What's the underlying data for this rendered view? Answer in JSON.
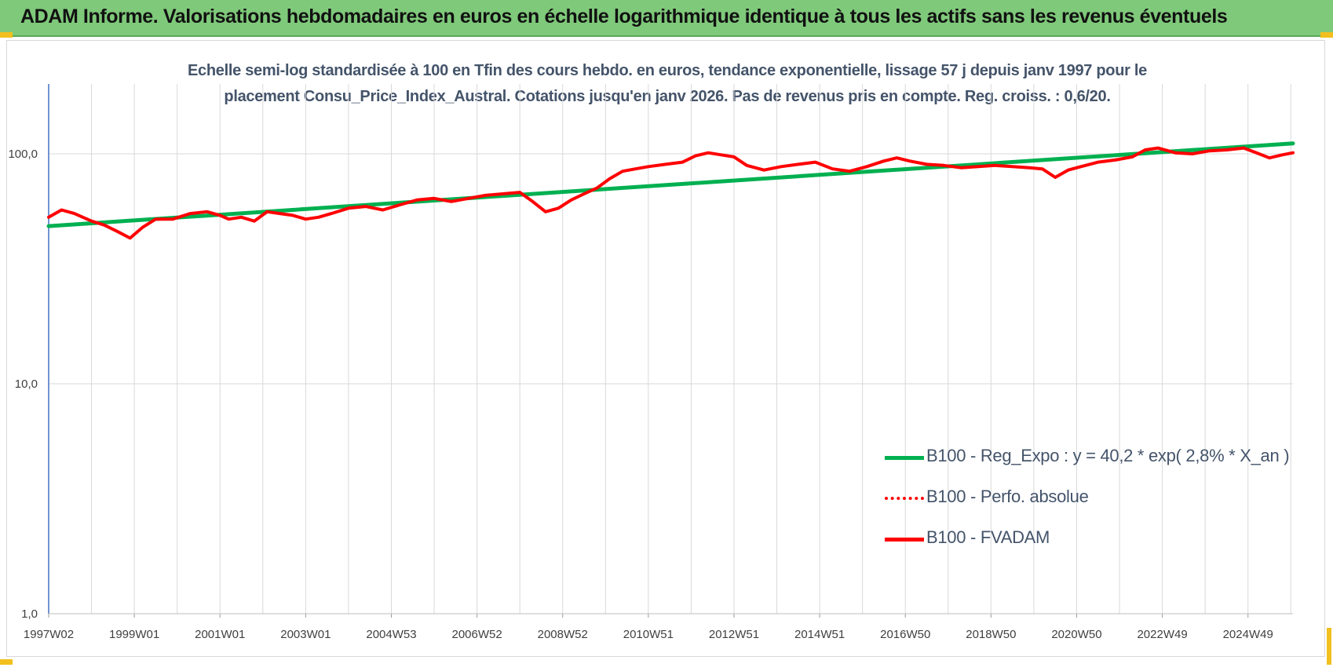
{
  "header": {
    "title": "ADAM Informe. Valorisations hebdomadaires en euros en échelle logarithmique identique à tous les actifs sans les revenus éventuels"
  },
  "chart_title": {
    "line1": "Echelle semi-log standardisée à 100 en Tfin des cours hebdo. en euros, tendance exponentielle, lissage 57 j depuis janv 1997 pour le",
    "line2": "placement Consu_Price_Index_Austral. Cotations jusqu'en janv 2026. Pas de revenus pris en compte. Reg. croiss. : 0,6/20."
  },
  "colors": {
    "header_bg": "#7fc97a",
    "trend": "#00b050",
    "series": "#ff0000",
    "grid": "#d9d9d9",
    "axis": "#4472c4",
    "text": "#44546a",
    "corner": "#f2c01e"
  },
  "legend": {
    "items": [
      {
        "label": "B100 - Reg_Expo : y = 40,2 * exp( 2,8% *  X_an )",
        "style": "solid",
        "color": "#00b050"
      },
      {
        "label": "B100 - Perfo. absolue",
        "style": "dotted",
        "color": "#ff0000"
      },
      {
        "label": "B100 - FVADAM",
        "style": "solid",
        "color": "#ff0000"
      }
    ]
  },
  "chart_data": {
    "type": "line",
    "y_scale": "log",
    "ylim": [
      1,
      200
    ],
    "y_ticks": [
      1,
      10,
      100
    ],
    "y_tick_labels": [
      "1,0",
      "10,0",
      "100,0"
    ],
    "x_tick_labels": [
      "1997W02",
      "1999W01",
      "2001W01",
      "2003W01",
      "2004W53",
      "2006W52",
      "2008W52",
      "2010W51",
      "2012W51",
      "2014W51",
      "2016W50",
      "2018W50",
      "2020W50",
      "2022W49",
      "2024W49"
    ],
    "x_range_years": [
      1997.0,
      2026.05
    ],
    "grid": true,
    "legend_position": "bottom-right",
    "series": [
      {
        "name": "B100 - Reg_Expo : y = 40,2 * exp( 2,8% *  X_an )",
        "color": "#00b050",
        "x": [
          1997.0,
          2026.05
        ],
        "values": [
          48.5,
          111.0
        ]
      },
      {
        "name": "B100 - FVADAM",
        "color": "#ff0000",
        "x": [
          1997.0,
          1997.3,
          1997.6,
          1998.0,
          1998.3,
          1998.6,
          1998.9,
          1999.2,
          1999.5,
          1999.9,
          2000.3,
          2000.7,
          2001.0,
          2001.2,
          2001.5,
          2001.8,
          2002.1,
          2002.4,
          2002.7,
          2003.0,
          2003.3,
          2003.6,
          2004.0,
          2004.4,
          2004.8,
          2005.2,
          2005.6,
          2006.0,
          2006.4,
          2006.8,
          2007.2,
          2007.6,
          2008.0,
          2008.3,
          2008.6,
          2008.9,
          2009.2,
          2009.5,
          2009.8,
          2010.1,
          2010.4,
          2010.7,
          2011.0,
          2011.4,
          2011.8,
          2012.1,
          2012.4,
          2012.7,
          2013.0,
          2013.3,
          2013.7,
          2014.1,
          2014.5,
          2014.9,
          2015.3,
          2015.7,
          2016.1,
          2016.5,
          2016.8,
          2017.1,
          2017.5,
          2017.9,
          2018.3,
          2018.7,
          2019.1,
          2019.5,
          2019.9,
          2020.2,
          2020.5,
          2020.8,
          2021.1,
          2021.5,
          2021.9,
          2022.3,
          2022.6,
          2022.9,
          2023.3,
          2023.7,
          2024.1,
          2024.5,
          2024.9,
          2025.2,
          2025.5,
          2025.8,
          2026.05
        ],
        "values": [
          53,
          57,
          55,
          51,
          49,
          46,
          43,
          48,
          52,
          52,
          55,
          56,
          54,
          52,
          53,
          51,
          56,
          55,
          54,
          52,
          53,
          55,
          58,
          59,
          57,
          60,
          63,
          64,
          62,
          64,
          66,
          67,
          68,
          62,
          56,
          58,
          63,
          67,
          71,
          78,
          84,
          86,
          88,
          90,
          92,
          98,
          101,
          99,
          97,
          89,
          85,
          88,
          90,
          92,
          86,
          84,
          88,
          93,
          96,
          93,
          90,
          89,
          87,
          88,
          89,
          88,
          87,
          86,
          79,
          85,
          88,
          92,
          94,
          97,
          104,
          106,
          101,
          100,
          103,
          104,
          106,
          101,
          96,
          99,
          101
        ]
      }
    ]
  }
}
